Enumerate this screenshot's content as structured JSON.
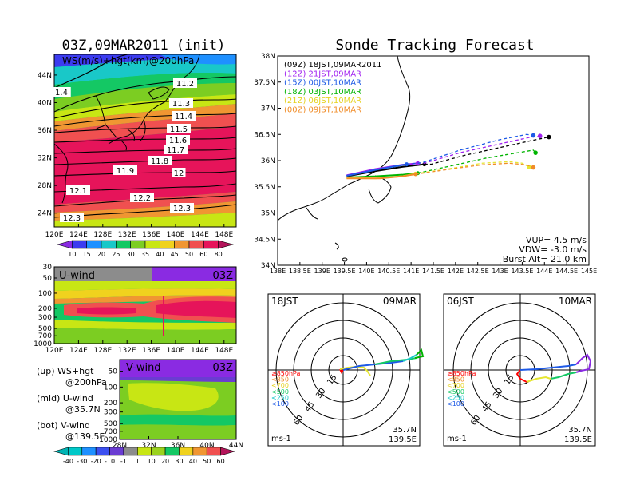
{
  "titles": {
    "left_title": "03Z,09MAR2011 (init)",
    "right_title": "Sonde Tracking Forecast"
  },
  "colors": {
    "band_10": "#8a2be2",
    "band_15": "#3c3cf0",
    "band_20": "#1e90ff",
    "band_25": "#19c8c8",
    "band_30": "#14c864",
    "band_35": "#7ccd22",
    "band_40": "#c8e614",
    "band_45": "#f0d21e",
    "band_50": "#f09632",
    "band_60": "#f05050",
    "band_80": "#e6145a",
    "track_09Z": "#000000",
    "track_12Z": "#a020f0",
    "track_15Z": "#1e5ae6",
    "track_18Z": "#00b400",
    "track_21Z": "#e6e632",
    "track_00Z": "#f08c28",
    "neg_40": "#00c8c8",
    "neg_30": "#1e90ff",
    "neg_20": "#3c50f0",
    "neg_10": "#6a3cd2",
    "neutral": "#8c8c8c"
  },
  "chart_data": [
    {
      "type": "heatmap",
      "name_panel": "upper",
      "title": "WS(m/s)+hgt(km)@200hPa",
      "x_ticks": [
        "120E",
        "124E",
        "128E",
        "132E",
        "136E",
        "140E",
        "144E",
        "148E"
      ],
      "y_ticks": [
        "24N",
        "28N",
        "32N",
        "36N",
        "40N",
        "44N"
      ],
      "xlim": [
        120,
        150
      ],
      "ylim": [
        22,
        47
      ],
      "contour_labels": [
        "1.4",
        "11.2",
        "11.3",
        "11.4",
        "11.5",
        "11.6",
        "11.7",
        "11.8",
        "11.9",
        "12",
        "12.1",
        "12.2",
        "12.3",
        "12.3"
      ],
      "colorbar_ticks": [
        "10",
        "15",
        "20",
        "25",
        "30",
        "35",
        "40",
        "45",
        "50",
        "60",
        "80"
      ]
    },
    {
      "type": "heatmap",
      "name_panel": "middle",
      "title": "U-wind",
      "time_label": "03Z",
      "x_ticks": [
        "120E",
        "124E",
        "128E",
        "132E",
        "136E",
        "140E",
        "144E",
        "148E"
      ],
      "y_ticks": [
        "30",
        "50",
        "100",
        "200",
        "300",
        "500",
        "700",
        "1000"
      ],
      "xlim": [
        120,
        150
      ]
    },
    {
      "type": "heatmap",
      "name_panel": "lower",
      "title": "V-wind",
      "time_label": "03Z",
      "x_ticks": [
        "28N",
        "32N",
        "36N",
        "40N",
        "44N"
      ],
      "y_ticks": [
        "50",
        "100",
        "200",
        "300",
        "500",
        "700",
        "1000"
      ],
      "xlim": [
        28,
        44
      ],
      "colorbar_ticks": [
        "-40",
        "-30",
        "-20",
        "-10",
        "-1",
        "1",
        "10",
        "20",
        "30",
        "40",
        "50",
        "60"
      ]
    },
    {
      "type": "line",
      "name_panel": "track",
      "title": "Sonde Tracking Forecast",
      "x_ticks": [
        "138E",
        "138.5E",
        "139E",
        "139.5E",
        "140E",
        "140.5E",
        "141E",
        "141.5E",
        "142E",
        "142.5E",
        "143E",
        "143.5E",
        "144E",
        "144.5E",
        "145E"
      ],
      "y_ticks": [
        "34N",
        "34.5N",
        "35N",
        "35.5N",
        "36N",
        "36.5N",
        "37N",
        "37.5N",
        "38N"
      ],
      "xlim": [
        138,
        145
      ],
      "ylim": [
        34,
        38
      ],
      "legend_placement": "top-left",
      "series": [
        {
          "name": "(09Z) 18JST,09MAR2011",
          "color": "#000000",
          "x": [
            139.55,
            140.2,
            140.8,
            141.3,
            141.45,
            142.2,
            143.0,
            143.7,
            144.1
          ],
          "y": [
            35.7,
            35.8,
            35.88,
            35.93,
            35.93,
            36.1,
            36.25,
            36.38,
            36.45
          ]
        },
        {
          "name": "(12Z) 21JST,09MAR",
          "color": "#a020f0",
          "x": [
            139.55,
            140.2,
            140.8,
            141.15,
            141.3,
            142.1,
            143.0,
            143.7,
            143.9
          ],
          "y": [
            35.72,
            35.84,
            35.92,
            35.95,
            35.95,
            36.15,
            36.32,
            36.45,
            36.47
          ]
        },
        {
          "name": "(15Z) 00JST,10MAR",
          "color": "#1e5ae6",
          "x": [
            139.55,
            140.3,
            140.9,
            141.25,
            142.1,
            143.0,
            143.6,
            143.75
          ],
          "y": [
            35.71,
            35.84,
            35.93,
            35.96,
            36.2,
            36.4,
            36.5,
            36.48
          ]
        },
        {
          "name": "(18Z) 03JST,10MAR",
          "color": "#00b400",
          "x": [
            139.55,
            140.2,
            140.8,
            141.15,
            141.9,
            142.7,
            143.4,
            143.75,
            143.8
          ],
          "y": [
            35.68,
            35.7,
            35.73,
            35.76,
            35.9,
            36.05,
            36.15,
            36.2,
            36.15
          ]
        },
        {
          "name": "(21Z) 06JST,10MAR",
          "color": "#e6e632",
          "x": [
            139.55,
            140.2,
            140.8,
            141.1,
            141.9,
            142.6,
            143.2,
            143.5,
            143.65
          ],
          "y": [
            35.67,
            35.66,
            35.7,
            35.75,
            35.85,
            35.95,
            35.98,
            35.95,
            35.88
          ]
        },
        {
          "name": "(00Z) 09JST,10MAR",
          "color": "#f08c28",
          "x": [
            139.55,
            140.3,
            140.8,
            141.1,
            141.9,
            142.6,
            143.2,
            143.6,
            143.75
          ],
          "y": [
            35.66,
            35.66,
            35.7,
            35.74,
            35.84,
            35.92,
            35.95,
            35.92,
            35.87
          ]
        }
      ],
      "annotations": [
        "VUP= 4.5 m/s",
        "VDW= -3.0 m/s",
        "Burst Alt= 21.0 km"
      ]
    },
    {
      "type": "line",
      "name_panel": "hodograph_left",
      "time_label": "18JST",
      "date_label": "09MAR",
      "ring_labels": [
        "15",
        "30",
        "45",
        "60"
      ],
      "legend": [
        "≥850hPa",
        "<850",
        "<700",
        "<500",
        "<250",
        "<100"
      ],
      "location": [
        "35.7N",
        "139.5E"
      ],
      "unit": "ms-1"
    },
    {
      "type": "line",
      "name_panel": "hodograph_right",
      "time_label": "06JST",
      "date_label": "10MAR",
      "ring_labels": [
        "15",
        "30",
        "45",
        "60"
      ],
      "legend": [
        "≥850hPa",
        "<850",
        "<700",
        "<500",
        "<250",
        "<100"
      ],
      "location": [
        "35.7N",
        "139.5E"
      ],
      "unit": "ms-1"
    }
  ],
  "left_notes": [
    {
      "line1": "(up) WS+hgt",
      "line2": "@200hPa"
    },
    {
      "line1": "(mid) U-wind",
      "line2": "@35.7N"
    },
    {
      "line1": "(bot) V-wind",
      "line2": "@139.5E"
    }
  ]
}
